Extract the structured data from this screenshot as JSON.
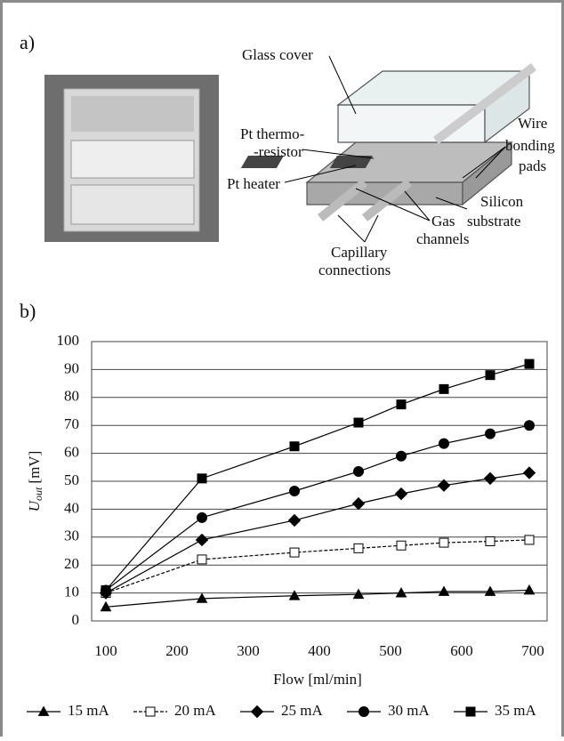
{
  "panel_a": {
    "label": "a)",
    "labels": [
      "Glass cover",
      "Pt thermo-",
      "-resistor",
      "Pt heater",
      "Wire",
      "bonding",
      "pads",
      "Silicon",
      "substrate",
      "Gas",
      "channels",
      "Capillary",
      "connections"
    ]
  },
  "panel_b": {
    "label": "b)"
  },
  "chart_data": {
    "type": "line",
    "x_label": "Flow [ml/min]",
    "y_label": {
      "symbol": "U",
      "subscript": "out",
      "unit": "[mV]"
    },
    "x": [
      100,
      235,
      365,
      455,
      515,
      575,
      640,
      695
    ],
    "xlim": [
      80,
      720
    ],
    "xticks": [
      100,
      200,
      300,
      400,
      500,
      600,
      700
    ],
    "ylim": [
      0,
      100
    ],
    "yticks": [
      0,
      10,
      20,
      30,
      40,
      50,
      60,
      70,
      80,
      90,
      100
    ],
    "grid": true,
    "legend": "bottom",
    "series": [
      {
        "name": "15 mA",
        "color": "#000000",
        "marker": "triangle",
        "line_style": "solid",
        "values": [
          5,
          8,
          9,
          9.5,
          10,
          10.5,
          10.5,
          11
        ]
      },
      {
        "name": "20 mA",
        "color": "#000000",
        "marker": "open-square",
        "line_style": "dashed",
        "values": [
          10,
          22,
          24.5,
          26,
          27,
          28,
          28.5,
          29
        ]
      },
      {
        "name": "25 mA",
        "color": "#000000",
        "marker": "diamond",
        "line_style": "solid",
        "values": [
          10,
          29,
          36,
          42,
          45.5,
          48.5,
          51,
          53
        ]
      },
      {
        "name": "30 mA",
        "color": "#000000",
        "marker": "circle",
        "line_style": "solid",
        "values": [
          11,
          37,
          46.5,
          53.5,
          59,
          63.5,
          67,
          70
        ]
      },
      {
        "name": "35 mA",
        "color": "#000000",
        "marker": "square",
        "line_style": "solid",
        "values": [
          11,
          51,
          62.5,
          71,
          77.5,
          83,
          88,
          92
        ]
      }
    ]
  }
}
